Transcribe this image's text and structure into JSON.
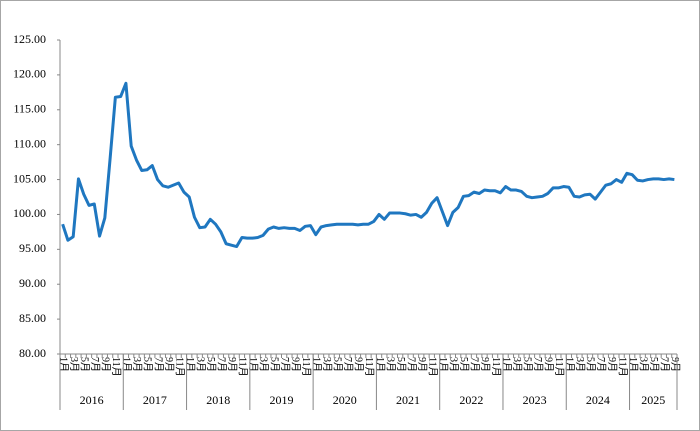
{
  "chart_data": {
    "type": "line",
    "categories": [
      "1月",
      null,
      "3月",
      null,
      "5月",
      null,
      "7月",
      null,
      "9月",
      null,
      "11月",
      null,
      "1月",
      null,
      "3月",
      null,
      "5月",
      null,
      "7月",
      null,
      "9月",
      null,
      "11月",
      null,
      "1月",
      null,
      "3月",
      null,
      "5月",
      null,
      "7月",
      null,
      "9月",
      null,
      "11月",
      null,
      "1月",
      null,
      "3月",
      null,
      "5月",
      null,
      "7月",
      null,
      "9月",
      null,
      "11月",
      null,
      "1月",
      null,
      "3月",
      null,
      "5月",
      null,
      "7月",
      null,
      "9月",
      null,
      "11月",
      null,
      "1月",
      null,
      "3月",
      null,
      "5月",
      null,
      "7月",
      null,
      "9月",
      null,
      "11月",
      null,
      "1月",
      null,
      "3月",
      null,
      "5月",
      null,
      "7月",
      null,
      "9月",
      null,
      "11月",
      null,
      "1月",
      null,
      "3月",
      null,
      "5月",
      null,
      "7月",
      null,
      "9月",
      null,
      "11月",
      null,
      "1月",
      null,
      "3月",
      null,
      "5月",
      null,
      "7月",
      null,
      "9月",
      null,
      "11月",
      null,
      "1月",
      null,
      "3月",
      null,
      "5月",
      null,
      "7月",
      null,
      "9月"
    ],
    "year_groups": [
      "2016",
      "2017",
      "2018",
      "2019",
      "2020",
      "2021",
      "2022",
      "2023",
      "2024",
      "2025"
    ],
    "series": [
      {
        "color": "#1f77c0",
        "values": [
          98.6,
          96.3,
          96.8,
          105.1,
          102.9,
          101.3,
          101.5,
          96.9,
          99.5,
          108.0,
          116.8,
          116.9,
          118.8,
          109.8,
          107.8,
          106.3,
          106.4,
          107.0,
          105.0,
          104.1,
          103.9,
          104.2,
          104.5,
          103.2,
          102.5,
          99.6,
          98.1,
          98.2,
          99.3,
          98.6,
          97.5,
          95.8,
          95.6,
          95.4,
          96.7,
          96.6,
          96.6,
          96.7,
          97.0,
          97.9,
          98.2,
          98.0,
          98.1,
          98.0,
          98.0,
          97.7,
          98.3,
          98.4,
          97.1,
          98.2,
          98.4,
          98.5,
          98.6,
          98.6,
          98.6,
          98.6,
          98.5,
          98.6,
          98.6,
          99.0,
          100.0,
          99.3,
          100.2,
          100.2,
          100.2,
          100.1,
          99.9,
          100.0,
          99.6,
          100.3,
          101.6,
          102.4,
          100.4,
          98.4,
          100.3,
          101.0,
          102.6,
          102.7,
          103.2,
          103.0,
          103.5,
          103.4,
          103.4,
          103.1,
          104.0,
          103.5,
          103.5,
          103.3,
          102.6,
          102.4,
          102.5,
          102.6,
          103.0,
          103.8,
          103.8,
          104.0,
          103.9,
          102.6,
          102.5,
          102.8,
          102.9,
          102.2,
          103.2,
          104.2,
          104.4,
          105.0,
          104.6,
          105.9,
          105.7,
          104.9,
          104.8,
          105.0,
          105.1,
          105.1,
          105.0,
          105.1,
          105.0
        ]
      }
    ],
    "ylim": [
      80,
      125
    ],
    "yticks": [
      {
        "value": 80,
        "label": "80.00"
      },
      {
        "value": 85,
        "label": "85.00"
      },
      {
        "value": 90,
        "label": "90.00"
      },
      {
        "value": 95,
        "label": "95.00"
      },
      {
        "value": 100,
        "label": "100.00"
      },
      {
        "value": 105,
        "label": "105.00"
      },
      {
        "value": 110,
        "label": "110.00"
      },
      {
        "value": 115,
        "label": "115.00"
      },
      {
        "value": 120,
        "label": "120.00"
      },
      {
        "value": 125,
        "label": "125.00"
      }
    ]
  }
}
